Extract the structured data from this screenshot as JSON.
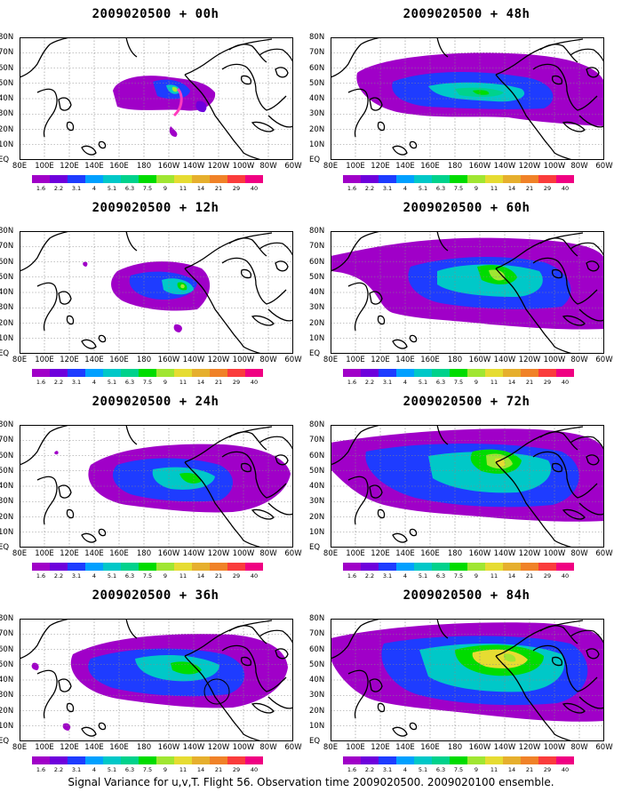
{
  "caption": "Signal Variance for u,v,T. Flight 56. Observation time 2009020500. 2009020100 ensemble.",
  "lat_labels": [
    "80N",
    "70N",
    "60N",
    "50N",
    "40N",
    "30N",
    "20N",
    "10N",
    "EQ"
  ],
  "lon_labels": [
    "80E",
    "100E",
    "120E",
    "140E",
    "160E",
    "180",
    "160W",
    "140W",
    "120W",
    "100W",
    "80W",
    "60W"
  ],
  "colorbar": {
    "levels": [
      "1.6",
      "2.2",
      "3.1",
      "4",
      "5.1",
      "6.3",
      "7.5",
      "9",
      "11",
      "14",
      "21",
      "29",
      "40"
    ],
    "colors": [
      "#a000c8",
      "#6e00dc",
      "#1e3cff",
      "#00a0ff",
      "#00c8c8",
      "#00d28c",
      "#00dc00",
      "#a0e632",
      "#e6dc32",
      "#e6af2d",
      "#f08228",
      "#fa3c3c",
      "#f00082"
    ]
  },
  "chart_data": {
    "type": "heatmap",
    "description_fields": [
      "title",
      "colorbar levels"
    ],
    "panels": [
      {
        "id": "p00",
        "title": "2009020500 + 00h",
        "col": 0,
        "row": 0
      },
      {
        "id": "p48",
        "title": "2009020500 + 48h",
        "col": 1,
        "row": 0
      },
      {
        "id": "p12",
        "title": "2009020500 + 12h",
        "col": 0,
        "row": 1
      },
      {
        "id": "p60",
        "title": "2009020500 + 60h",
        "col": 1,
        "row": 1
      },
      {
        "id": "p24",
        "title": "2009020500 + 24h",
        "col": 0,
        "row": 2
      },
      {
        "id": "p72",
        "title": "2009020500 + 72h",
        "col": 1,
        "row": 2
      },
      {
        "id": "p36",
        "title": "2009020500 + 36h",
        "col": 0,
        "row": 3
      },
      {
        "id": "p84",
        "title": "2009020500 + 84h",
        "col": 1,
        "row": 3
      }
    ],
    "xrange": [
      "80E",
      "60W"
    ],
    "yrange": [
      "EQ",
      "80N"
    ],
    "grid": true
  }
}
